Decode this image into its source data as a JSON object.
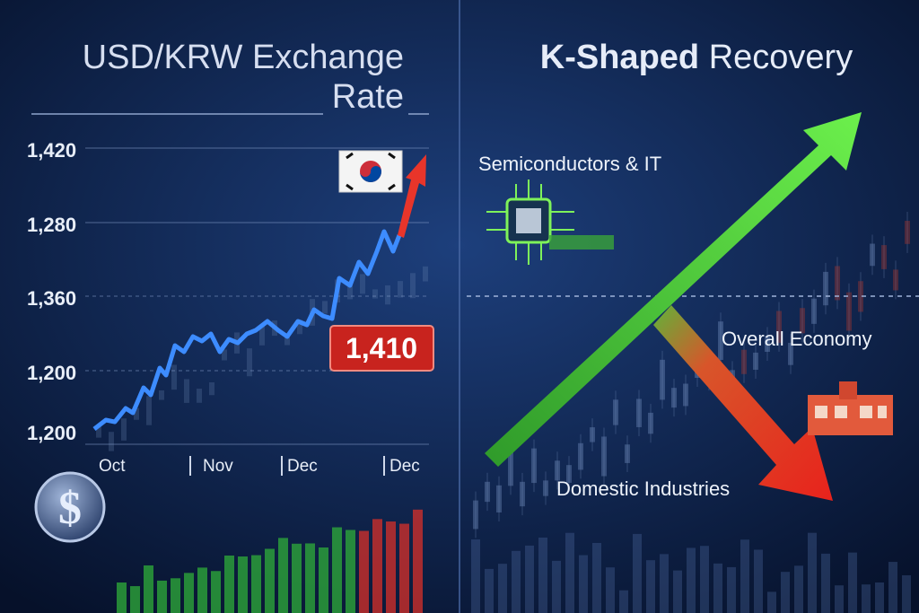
{
  "left_panel": {
    "title_lines": [
      "USD/KRW Exchange",
      "Rate"
    ],
    "y_labels": [
      "1,420",
      "1,280",
      "1,360",
      "1,200",
      "1,200"
    ],
    "x_labels": [
      "Oct",
      "Nov",
      "Dec",
      "Dec"
    ],
    "badge": "1,410"
  },
  "right_panel": {
    "title": {
      "bold": "K-Shaped",
      "rest": "Recovery"
    },
    "labels": {
      "upper": "Semiconductors & IT",
      "middle": "Overall Economy",
      "lower": "Domestic Industries"
    }
  }
}
